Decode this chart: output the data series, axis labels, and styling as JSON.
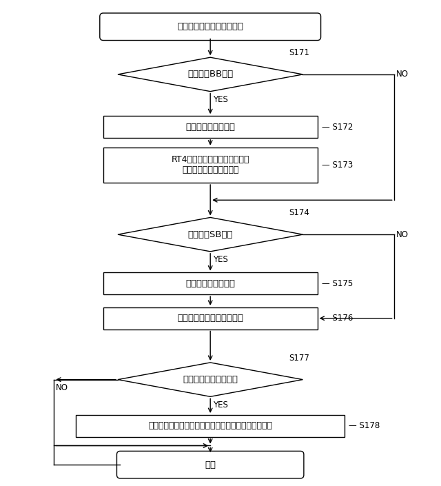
{
  "start_label": "ボーナス作動チェック処理",
  "d1_label": "表示役はBBか？",
  "d1_step": "S171",
  "r172_label": "ボーナス作動時処理",
  "r172_step": "S172",
  "r173_label": "RT4遊技状態フラグをオフし、\n持越役格納領域をクリア",
  "r173_step": "S173",
  "d2_label": "表示役はSBか？",
  "d2_step": "S174",
  "r175_label": "ボーナス作動時処理",
  "r175_step": "S175",
  "r176_label": "ボーナス開始コマンド送信",
  "r176_step": "S176",
  "d3_label": "表示役はリプレイか？",
  "d3_step": "S177",
  "r178_label": "投入枚数カウンタの値を自動投入枚数カウンタに複写",
  "r178_step": "S178",
  "end_label": "戻る",
  "yes_label": "YES",
  "no_label": "NO",
  "bg_color": "#ffffff",
  "box_color": "#ffffff",
  "border_color": "#000000",
  "text_color": "#000000"
}
